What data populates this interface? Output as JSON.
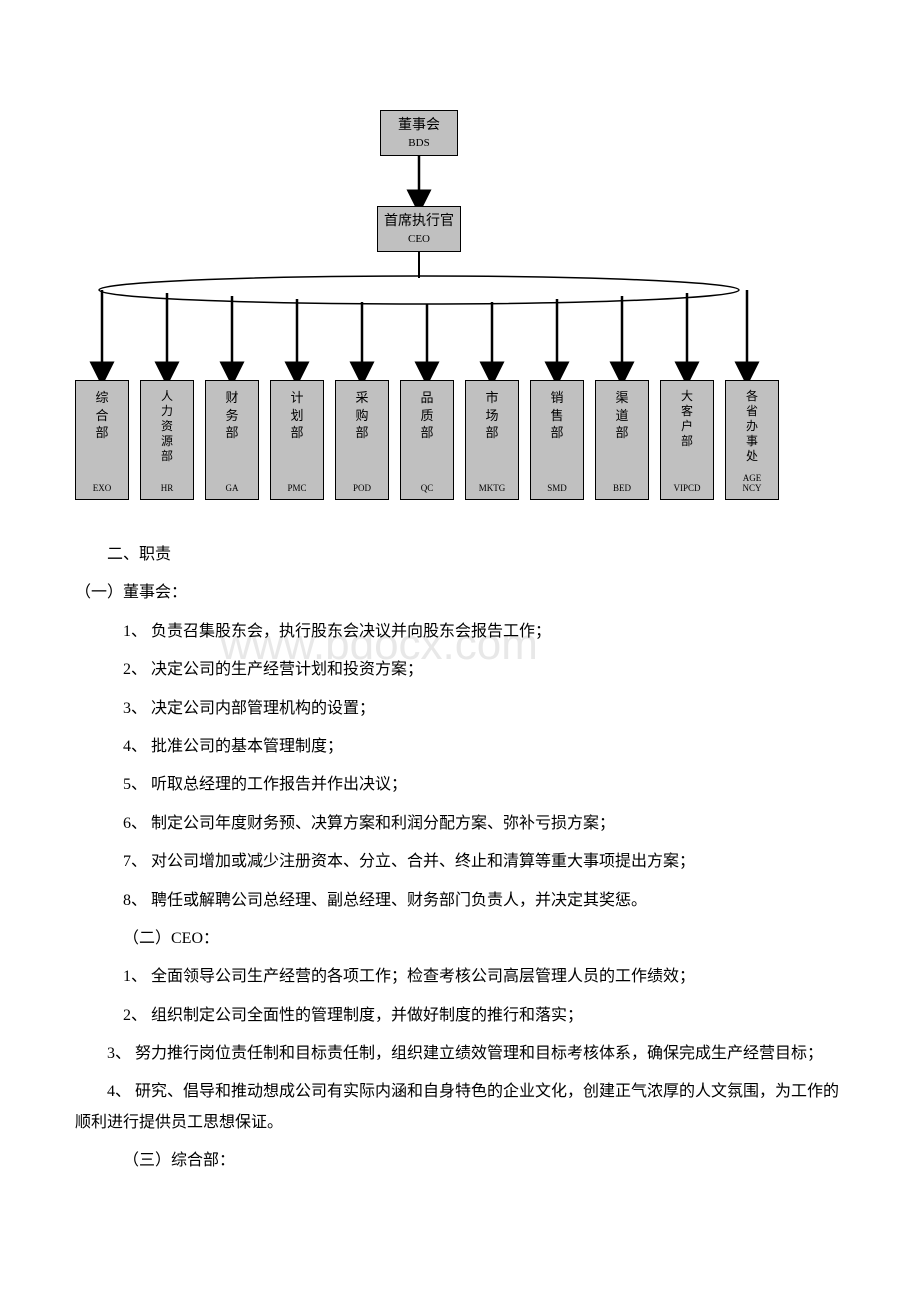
{
  "org": {
    "top": {
      "cn": "董事会",
      "en": "BDS"
    },
    "ceo": {
      "cn": "首席执行官",
      "en": "CEO"
    },
    "depts": [
      {
        "cn": "综\n合\n部",
        "en": "EXO"
      },
      {
        "cn": "人\n力\n资\n源\n部",
        "en": "HR"
      },
      {
        "cn": "财\n务\n部",
        "en": "GA"
      },
      {
        "cn": "计\n划\n部",
        "en": "PMC"
      },
      {
        "cn": "采\n购\n部",
        "en": "POD"
      },
      {
        "cn": "品\n质\n部",
        "en": "QC"
      },
      {
        "cn": "市\n场\n部",
        "en": "MKTG"
      },
      {
        "cn": "销\n售\n部",
        "en": "SMD"
      },
      {
        "cn": "渠\n道\n部",
        "en": "BED"
      },
      {
        "cn": "大\n客\n户\n部",
        "en": "VIPCD"
      },
      {
        "cn": "各\n省\n办\n事\n处",
        "en": "AGE\nNCY"
      }
    ]
  },
  "colors": {
    "node_fill": "#c0c0c0",
    "node_border": "#000000",
    "background": "#ffffff",
    "text": "#000000",
    "watermark": "#e8e8e8"
  },
  "text": {
    "section2_title": "二、职责",
    "sub1_title": "（一）董事会：",
    "sub1_items": [
      "1、 负责召集股东会，执行股东会决议并向股东会报告工作；",
      "2、 决定公司的生产经营计划和投资方案；",
      "3、 决定公司内部管理机构的设置；",
      "4、 批准公司的基本管理制度；",
      "5、 听取总经理的工作报告并作出决议；",
      "6、 制定公司年度财务预、决算方案和利润分配方案、弥补亏损方案；",
      "7、 对公司增加或减少注册资本、分立、合并、终止和清算等重大事项提出方案；",
      "8、 聘任或解聘公司总经理、副总经理、财务部门负责人，并决定其奖惩。"
    ],
    "sub2_title": "（二）CEO：",
    "sub2_items": [
      "1、 全面领导公司生产经营的各项工作；检查考核公司高层管理人员的工作绩效；",
      "2、 组织制定公司全面性的管理制度，并做好制度的推行和落实；",
      "3、 努力推行岗位责任制和目标责任制，组织建立绩效管理和目标考核体系，确保完成生产经营目标；",
      "4、 研究、倡导和推动想成公司有实际内涵和自身特色的企业文化，创建正气浓厚的人文氛围，为工作的顺利进行提供员工思想保证。"
    ],
    "sub3_title": "（三）综合部："
  },
  "watermark": "www.bdocx.com"
}
